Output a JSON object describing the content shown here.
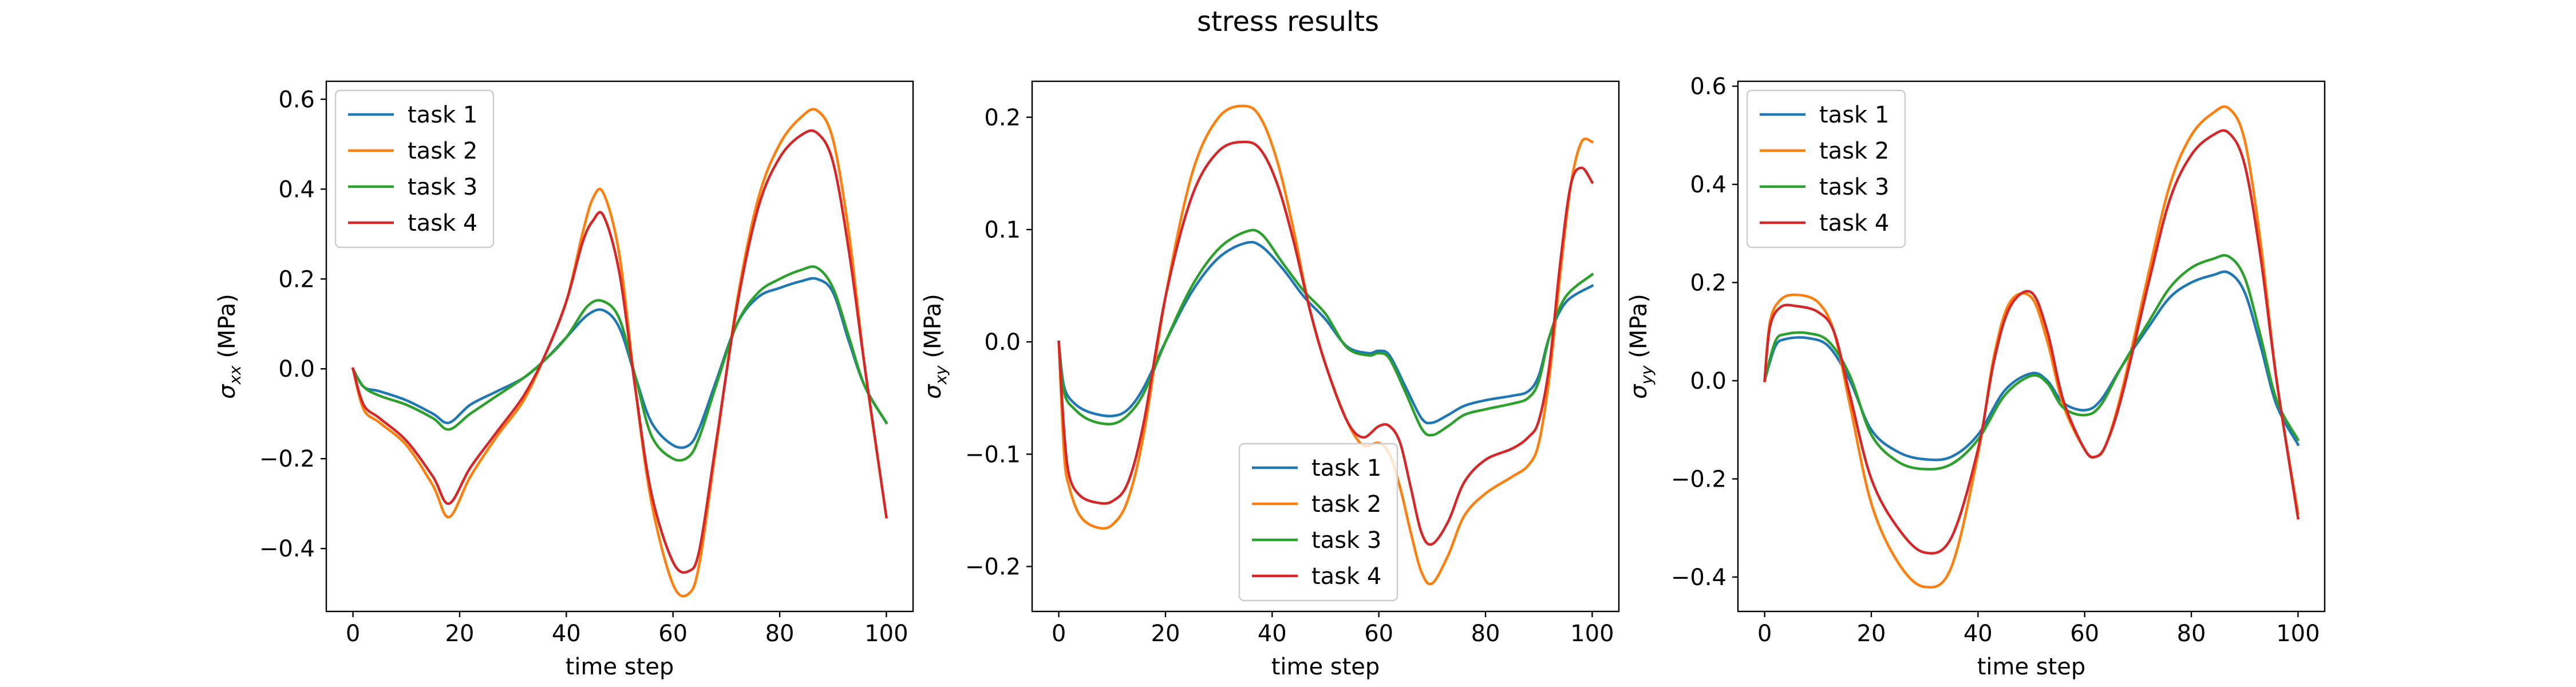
{
  "figure": {
    "suptitle": "stress results",
    "colors": {
      "task 1": "#1f77b4",
      "task 2": "#ff7f0e",
      "task 3": "#2ca02c",
      "task 4": "#d62728"
    }
  },
  "chart_data": [
    {
      "type": "line",
      "title": "",
      "xlabel": "time step",
      "ylabel_symbol": "σ",
      "ylabel_sub": "xx",
      "ylabel_unit": " (MPa)",
      "xlim": [
        -5,
        105
      ],
      "ylim": [
        -0.54,
        0.64
      ],
      "xticks": [
        0,
        20,
        40,
        60,
        80,
        100
      ],
      "yticks": [
        -0.4,
        -0.2,
        0.0,
        0.2,
        0.4,
        0.6
      ],
      "ytick_labels": [
        "−0.4",
        "−0.2",
        "0.0",
        "0.2",
        "0.4",
        "0.6"
      ],
      "legend_position": "top-left",
      "grid": false,
      "series": [
        {
          "name": "task 1",
          "color": "#1f77b4",
          "x": [
            0,
            2,
            5,
            10,
            15,
            18,
            22,
            27,
            32,
            36,
            40,
            44,
            47,
            50,
            53,
            56,
            60,
            63,
            65,
            68,
            72,
            76,
            80,
            84,
            87,
            90,
            93,
            96,
            100
          ],
          "y": [
            0.0,
            -0.04,
            -0.05,
            -0.07,
            -0.1,
            -0.12,
            -0.08,
            -0.05,
            -0.02,
            0.02,
            0.07,
            0.12,
            0.13,
            0.09,
            -0.02,
            -0.12,
            -0.17,
            -0.17,
            -0.13,
            -0.03,
            0.1,
            0.16,
            0.18,
            0.195,
            0.2,
            0.17,
            0.06,
            -0.04,
            -0.12
          ]
        },
        {
          "name": "task 2",
          "color": "#ff7f0e",
          "x": [
            0,
            2,
            5,
            10,
            15,
            18,
            22,
            27,
            32,
            36,
            40,
            43,
            45,
            47,
            50,
            53,
            56,
            60,
            63,
            65,
            68,
            72,
            76,
            80,
            84,
            87,
            90,
            93,
            96,
            100
          ],
          "y": [
            0.0,
            -0.09,
            -0.12,
            -0.17,
            -0.26,
            -0.33,
            -0.24,
            -0.15,
            -0.07,
            0.03,
            0.15,
            0.3,
            0.38,
            0.39,
            0.25,
            -0.05,
            -0.3,
            -0.48,
            -0.5,
            -0.43,
            -0.18,
            0.15,
            0.38,
            0.5,
            0.56,
            0.575,
            0.51,
            0.3,
            0.0,
            -0.33
          ]
        },
        {
          "name": "task 3",
          "color": "#2ca02c",
          "x": [
            0,
            2,
            5,
            10,
            15,
            18,
            22,
            27,
            32,
            36,
            40,
            44,
            47,
            50,
            53,
            56,
            60,
            63,
            65,
            68,
            72,
            76,
            80,
            84,
            87,
            90,
            93,
            96,
            100
          ],
          "y": [
            0.0,
            -0.04,
            -0.06,
            -0.08,
            -0.11,
            -0.135,
            -0.1,
            -0.06,
            -0.02,
            0.02,
            0.07,
            0.14,
            0.15,
            0.11,
            -0.02,
            -0.15,
            -0.2,
            -0.195,
            -0.15,
            -0.04,
            0.1,
            0.17,
            0.2,
            0.22,
            0.225,
            0.18,
            0.07,
            -0.04,
            -0.12
          ]
        },
        {
          "name": "task 4",
          "color": "#d62728",
          "x": [
            0,
            2,
            5,
            10,
            15,
            18,
            22,
            27,
            32,
            36,
            40,
            43,
            45,
            47,
            50,
            53,
            56,
            60,
            63,
            65,
            68,
            72,
            76,
            80,
            84,
            87,
            90,
            93,
            96,
            100
          ],
          "y": [
            0.0,
            -0.08,
            -0.11,
            -0.16,
            -0.24,
            -0.3,
            -0.22,
            -0.14,
            -0.06,
            0.03,
            0.15,
            0.28,
            0.33,
            0.34,
            0.21,
            -0.05,
            -0.28,
            -0.43,
            -0.45,
            -0.4,
            -0.17,
            0.14,
            0.36,
            0.47,
            0.52,
            0.525,
            0.46,
            0.26,
            0.0,
            -0.33
          ]
        }
      ]
    },
    {
      "type": "line",
      "title": "",
      "xlabel": "time step",
      "ylabel_symbol": "σ",
      "ylabel_sub": "xy",
      "ylabel_unit": " (MPa)",
      "xlim": [
        -5,
        105
      ],
      "ylim": [
        -0.24,
        0.232
      ],
      "xticks": [
        0,
        20,
        40,
        60,
        80,
        100
      ],
      "yticks": [
        -0.2,
        -0.1,
        0.0,
        0.1,
        0.2
      ],
      "ytick_labels": [
        "−0.2",
        "−0.1",
        "0.0",
        "0.1",
        "0.2"
      ],
      "legend_position": "lower center",
      "grid": false,
      "series": [
        {
          "name": "task 1",
          "color": "#1f77b4",
          "x": [
            0,
            1,
            3,
            6,
            10,
            13,
            16,
            20,
            25,
            30,
            35,
            38,
            42,
            46,
            50,
            54,
            58,
            60,
            62,
            65,
            68,
            70,
            73,
            76,
            80,
            85,
            88,
            90,
            92,
            95,
            100
          ],
          "y": [
            0.0,
            -0.04,
            -0.055,
            -0.063,
            -0.066,
            -0.06,
            -0.04,
            0.0,
            0.045,
            0.075,
            0.088,
            0.085,
            0.065,
            0.04,
            0.02,
            -0.004,
            -0.01,
            -0.008,
            -0.012,
            -0.04,
            -0.068,
            -0.072,
            -0.065,
            -0.057,
            -0.052,
            -0.048,
            -0.044,
            -0.03,
            0.005,
            0.035,
            0.05
          ]
        },
        {
          "name": "task 2",
          "color": "#ff7f0e",
          "x": [
            0,
            1,
            2,
            4,
            7,
            10,
            13,
            16,
            20,
            25,
            30,
            35,
            38,
            41,
            44,
            47,
            50,
            54,
            57,
            60,
            62,
            64,
            66,
            68,
            70,
            73,
            76,
            80,
            85,
            88,
            90,
            92,
            94,
            96,
            98,
            100
          ],
          "y": [
            0.0,
            -0.1,
            -0.13,
            -0.155,
            -0.165,
            -0.163,
            -0.14,
            -0.08,
            0.04,
            0.15,
            0.2,
            0.21,
            0.198,
            0.16,
            0.1,
            0.03,
            -0.02,
            -0.07,
            -0.092,
            -0.09,
            -0.1,
            -0.13,
            -0.17,
            -0.205,
            -0.215,
            -0.19,
            -0.155,
            -0.135,
            -0.12,
            -0.11,
            -0.09,
            -0.03,
            0.06,
            0.14,
            0.178,
            0.178
          ]
        },
        {
          "name": "task 3",
          "color": "#2ca02c",
          "x": [
            0,
            1,
            3,
            6,
            10,
            13,
            16,
            20,
            25,
            30,
            35,
            38,
            42,
            46,
            50,
            54,
            58,
            60,
            62,
            65,
            68,
            70,
            73,
            76,
            80,
            85,
            88,
            90,
            92,
            95,
            100
          ],
          "y": [
            0.0,
            -0.045,
            -0.06,
            -0.07,
            -0.073,
            -0.065,
            -0.045,
            0.0,
            0.05,
            0.083,
            0.098,
            0.096,
            0.07,
            0.045,
            0.025,
            -0.005,
            -0.012,
            -0.01,
            -0.015,
            -0.045,
            -0.077,
            -0.083,
            -0.075,
            -0.065,
            -0.06,
            -0.055,
            -0.05,
            -0.035,
            0.005,
            0.04,
            0.06
          ]
        },
        {
          "name": "task 4",
          "color": "#d62728",
          "x": [
            0,
            1,
            2,
            4,
            7,
            10,
            13,
            16,
            20,
            25,
            30,
            35,
            38,
            41,
            44,
            47,
            50,
            54,
            57,
            60,
            62,
            64,
            66,
            68,
            70,
            73,
            76,
            80,
            85,
            88,
            90,
            92,
            94,
            96,
            98,
            100
          ],
          "y": [
            0.0,
            -0.08,
            -0.12,
            -0.137,
            -0.143,
            -0.142,
            -0.125,
            -0.07,
            0.04,
            0.13,
            0.17,
            0.178,
            0.17,
            0.14,
            0.09,
            0.03,
            -0.02,
            -0.07,
            -0.085,
            -0.075,
            -0.075,
            -0.09,
            -0.13,
            -0.17,
            -0.18,
            -0.16,
            -0.125,
            -0.105,
            -0.095,
            -0.085,
            -0.07,
            -0.02,
            0.07,
            0.14,
            0.155,
            0.142
          ]
        }
      ]
    },
    {
      "type": "line",
      "title": "",
      "xlabel": "time step",
      "ylabel_symbol": "σ",
      "ylabel_sub": "yy",
      "ylabel_unit": " (MPa)",
      "xlim": [
        -5,
        105
      ],
      "ylim": [
        -0.47,
        0.61
      ],
      "xticks": [
        0,
        20,
        40,
        60,
        80,
        100
      ],
      "yticks": [
        -0.4,
        -0.2,
        0.0,
        0.2,
        0.4,
        0.6
      ],
      "ytick_labels": [
        "−0.4",
        "−0.2",
        "0.0",
        "0.2",
        "0.4",
        "0.6"
      ],
      "legend_position": "top-left",
      "grid": false,
      "series": [
        {
          "name": "task 1",
          "color": "#1f77b4",
          "x": [
            0,
            2,
            4,
            8,
            12,
            16,
            20,
            25,
            30,
            35,
            40,
            45,
            50,
            53,
            56,
            60,
            63,
            67,
            72,
            76,
            80,
            84,
            87,
            90,
            93,
            96,
            100
          ],
          "y": [
            0.0,
            0.07,
            0.085,
            0.087,
            0.07,
            0.0,
            -0.1,
            -0.145,
            -0.16,
            -0.155,
            -0.11,
            -0.02,
            0.015,
            0.0,
            -0.045,
            -0.06,
            -0.04,
            0.03,
            0.11,
            0.17,
            0.2,
            0.215,
            0.22,
            0.18,
            0.07,
            -0.05,
            -0.13
          ]
        },
        {
          "name": "task 2",
          "color": "#ff7f0e",
          "x": [
            0,
            1,
            3,
            6,
            10,
            13,
            16,
            20,
            25,
            30,
            35,
            40,
            43,
            46,
            50,
            53,
            56,
            60,
            62,
            64,
            67,
            72,
            76,
            80,
            84,
            87,
            90,
            93,
            96,
            100
          ],
          "y": [
            0.0,
            0.12,
            0.165,
            0.175,
            0.16,
            0.1,
            -0.05,
            -0.25,
            -0.37,
            -0.42,
            -0.38,
            -0.15,
            0.05,
            0.16,
            0.17,
            0.08,
            -0.05,
            -0.14,
            -0.155,
            -0.13,
            -0.02,
            0.22,
            0.4,
            0.5,
            0.545,
            0.555,
            0.49,
            0.28,
            0.0,
            -0.27
          ]
        },
        {
          "name": "task 3",
          "color": "#2ca02c",
          "x": [
            0,
            2,
            4,
            8,
            12,
            16,
            20,
            25,
            30,
            35,
            40,
            45,
            50,
            53,
            56,
            60,
            63,
            67,
            72,
            76,
            80,
            84,
            87,
            90,
            93,
            96,
            100
          ],
          "y": [
            0.0,
            0.08,
            0.095,
            0.097,
            0.08,
            0.01,
            -0.11,
            -0.165,
            -0.18,
            -0.17,
            -0.12,
            -0.03,
            0.01,
            -0.005,
            -0.055,
            -0.07,
            -0.05,
            0.03,
            0.12,
            0.19,
            0.23,
            0.248,
            0.253,
            0.21,
            0.09,
            -0.04,
            -0.12
          ]
        },
        {
          "name": "task 4",
          "color": "#d62728",
          "x": [
            0,
            1,
            3,
            6,
            10,
            13,
            16,
            20,
            25,
            30,
            35,
            40,
            43,
            46,
            50,
            53,
            56,
            60,
            62,
            64,
            67,
            72,
            76,
            80,
            84,
            87,
            90,
            93,
            96,
            100
          ],
          "y": [
            0.0,
            0.11,
            0.15,
            0.152,
            0.14,
            0.1,
            -0.03,
            -0.2,
            -0.3,
            -0.35,
            -0.32,
            -0.14,
            0.04,
            0.15,
            0.18,
            0.1,
            -0.04,
            -0.14,
            -0.155,
            -0.13,
            -0.03,
            0.2,
            0.37,
            0.46,
            0.5,
            0.505,
            0.44,
            0.25,
            0.0,
            -0.28
          ]
        }
      ]
    }
  ]
}
